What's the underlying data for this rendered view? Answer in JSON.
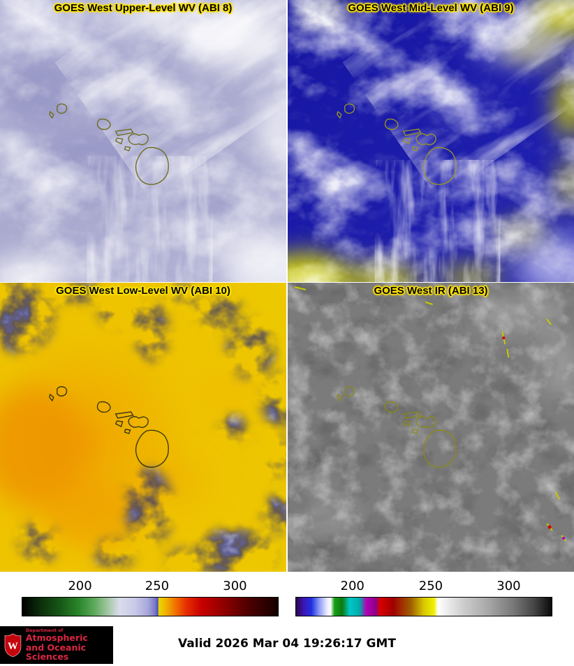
{
  "panels": [
    {
      "title": "GOES West Upper-Level WV (ABI 8)"
    },
    {
      "title": "GOES West Mid-Level WV (ABI 9)"
    },
    {
      "title": "GOES West Low-Level WV (ABI 10)"
    },
    {
      "title": "GOES West IR (ABI 13)"
    }
  ],
  "colorbars": {
    "left": {
      "ticks": [
        {
          "label": "200",
          "pos": 22.7
        },
        {
          "label": "250",
          "pos": 52.7
        },
        {
          "label": "300",
          "pos": 83.0
        }
      ],
      "stops": [
        {
          "c": "#000000",
          "p": 0
        },
        {
          "c": "#0b2e0b",
          "p": 7
        },
        {
          "c": "#175817",
          "p": 15
        },
        {
          "c": "#2a852a",
          "p": 22
        },
        {
          "c": "#5aa85a",
          "p": 28
        },
        {
          "c": "#9cc49c",
          "p": 33
        },
        {
          "c": "#d9dcea",
          "p": 38
        },
        {
          "c": "#c9c9e8",
          "p": 44
        },
        {
          "c": "#a8a8dc",
          "p": 49
        },
        {
          "c": "#7878c8",
          "p": 52
        },
        {
          "c": "#4c4cc0",
          "p": 53
        },
        {
          "c": "#e8d800",
          "p": 53.4
        },
        {
          "c": "#f0b400",
          "p": 56
        },
        {
          "c": "#f07000",
          "p": 60
        },
        {
          "c": "#e83000",
          "p": 64
        },
        {
          "c": "#c80000",
          "p": 70
        },
        {
          "c": "#960000",
          "p": 78
        },
        {
          "c": "#500000",
          "p": 88
        },
        {
          "c": "#140000",
          "p": 100
        }
      ]
    },
    "right": {
      "ticks": [
        {
          "label": "200",
          "pos": 22.2
        },
        {
          "label": "250",
          "pos": 52.7
        },
        {
          "label": "300",
          "pos": 83.0
        }
      ],
      "stops": [
        {
          "c": "#28084c",
          "p": 0
        },
        {
          "c": "#3c14b4",
          "p": 3
        },
        {
          "c": "#2030e0",
          "p": 6
        },
        {
          "c": "#8898f4",
          "p": 9
        },
        {
          "c": "#e8e8ff",
          "p": 12
        },
        {
          "c": "#ffffff",
          "p": 13.5
        },
        {
          "c": "#18a018",
          "p": 15
        },
        {
          "c": "#0c7a0c",
          "p": 18
        },
        {
          "c": "#00c8c8",
          "p": 21
        },
        {
          "c": "#00a8a8",
          "p": 25
        },
        {
          "c": "#b400b4",
          "p": 27.5
        },
        {
          "c": "#8c008c",
          "p": 31
        },
        {
          "c": "#d80000",
          "p": 33
        },
        {
          "c": "#a00000",
          "p": 38
        },
        {
          "c": "#a06000",
          "p": 45
        },
        {
          "c": "#d8c800",
          "p": 50
        },
        {
          "c": "#f0f000",
          "p": 54
        },
        {
          "c": "#ffffff",
          "p": 55.5
        },
        {
          "c": "#cfcfcf",
          "p": 65
        },
        {
          "c": "#a8a8a8",
          "p": 75
        },
        {
          "c": "#787878",
          "p": 85
        },
        {
          "c": "#464646",
          "p": 93
        },
        {
          "c": "#0a0a0a",
          "p": 100
        }
      ]
    }
  },
  "footer": {
    "valid_label": "Valid 2026 Mar 04 19:26:17 GMT",
    "logo": {
      "dept": "Department of",
      "line1": "Atmospheric",
      "line2": "and Oceanic Sciences",
      "crest_letter": "W"
    }
  },
  "colors": {
    "bg": "#ffffff",
    "title_text": "#000000",
    "title_glow": "#ffe400",
    "uw_red": "#d92643",
    "crest_red": "#c5050c",
    "panel1_base": "#aeaed4",
    "panel2_base": "#1b1baa",
    "panel3_base": "#eec800",
    "panel4_base": "#7b7b7b"
  }
}
